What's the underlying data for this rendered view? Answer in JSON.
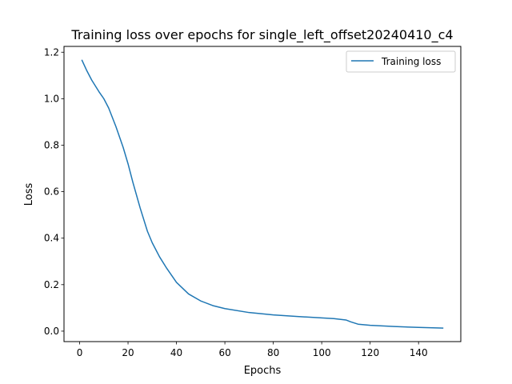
{
  "chart_data": {
    "type": "line",
    "title": "Training loss over epochs for single_left_offset20240410_c4",
    "xlabel": "Epochs",
    "ylabel": "Loss",
    "xlim": [
      -6.45,
      157.45
    ],
    "ylim": [
      -0.045,
      1.225
    ],
    "xticks": [
      0,
      20,
      40,
      60,
      80,
      100,
      120,
      140
    ],
    "yticks": [
      0.0,
      0.2,
      0.4,
      0.6,
      0.8,
      1.0,
      1.2
    ],
    "grid": false,
    "legend_position": "top-right",
    "series": [
      {
        "name": "Training loss",
        "color": "#1f77b4",
        "x": [
          1,
          3,
          5,
          8,
          10,
          12,
          15,
          18,
          20,
          22,
          25,
          28,
          30,
          33,
          36,
          40,
          45,
          50,
          55,
          60,
          70,
          80,
          90,
          100,
          105,
          110,
          112,
          115,
          120,
          130,
          140,
          150
        ],
        "y": [
          1.165,
          1.12,
          1.08,
          1.03,
          1.0,
          0.96,
          0.88,
          0.79,
          0.72,
          0.64,
          0.53,
          0.43,
          0.38,
          0.32,
          0.27,
          0.21,
          0.16,
          0.13,
          0.11,
          0.097,
          0.08,
          0.07,
          0.063,
          0.057,
          0.054,
          0.048,
          0.04,
          0.03,
          0.025,
          0.02,
          0.016,
          0.013
        ]
      }
    ]
  }
}
